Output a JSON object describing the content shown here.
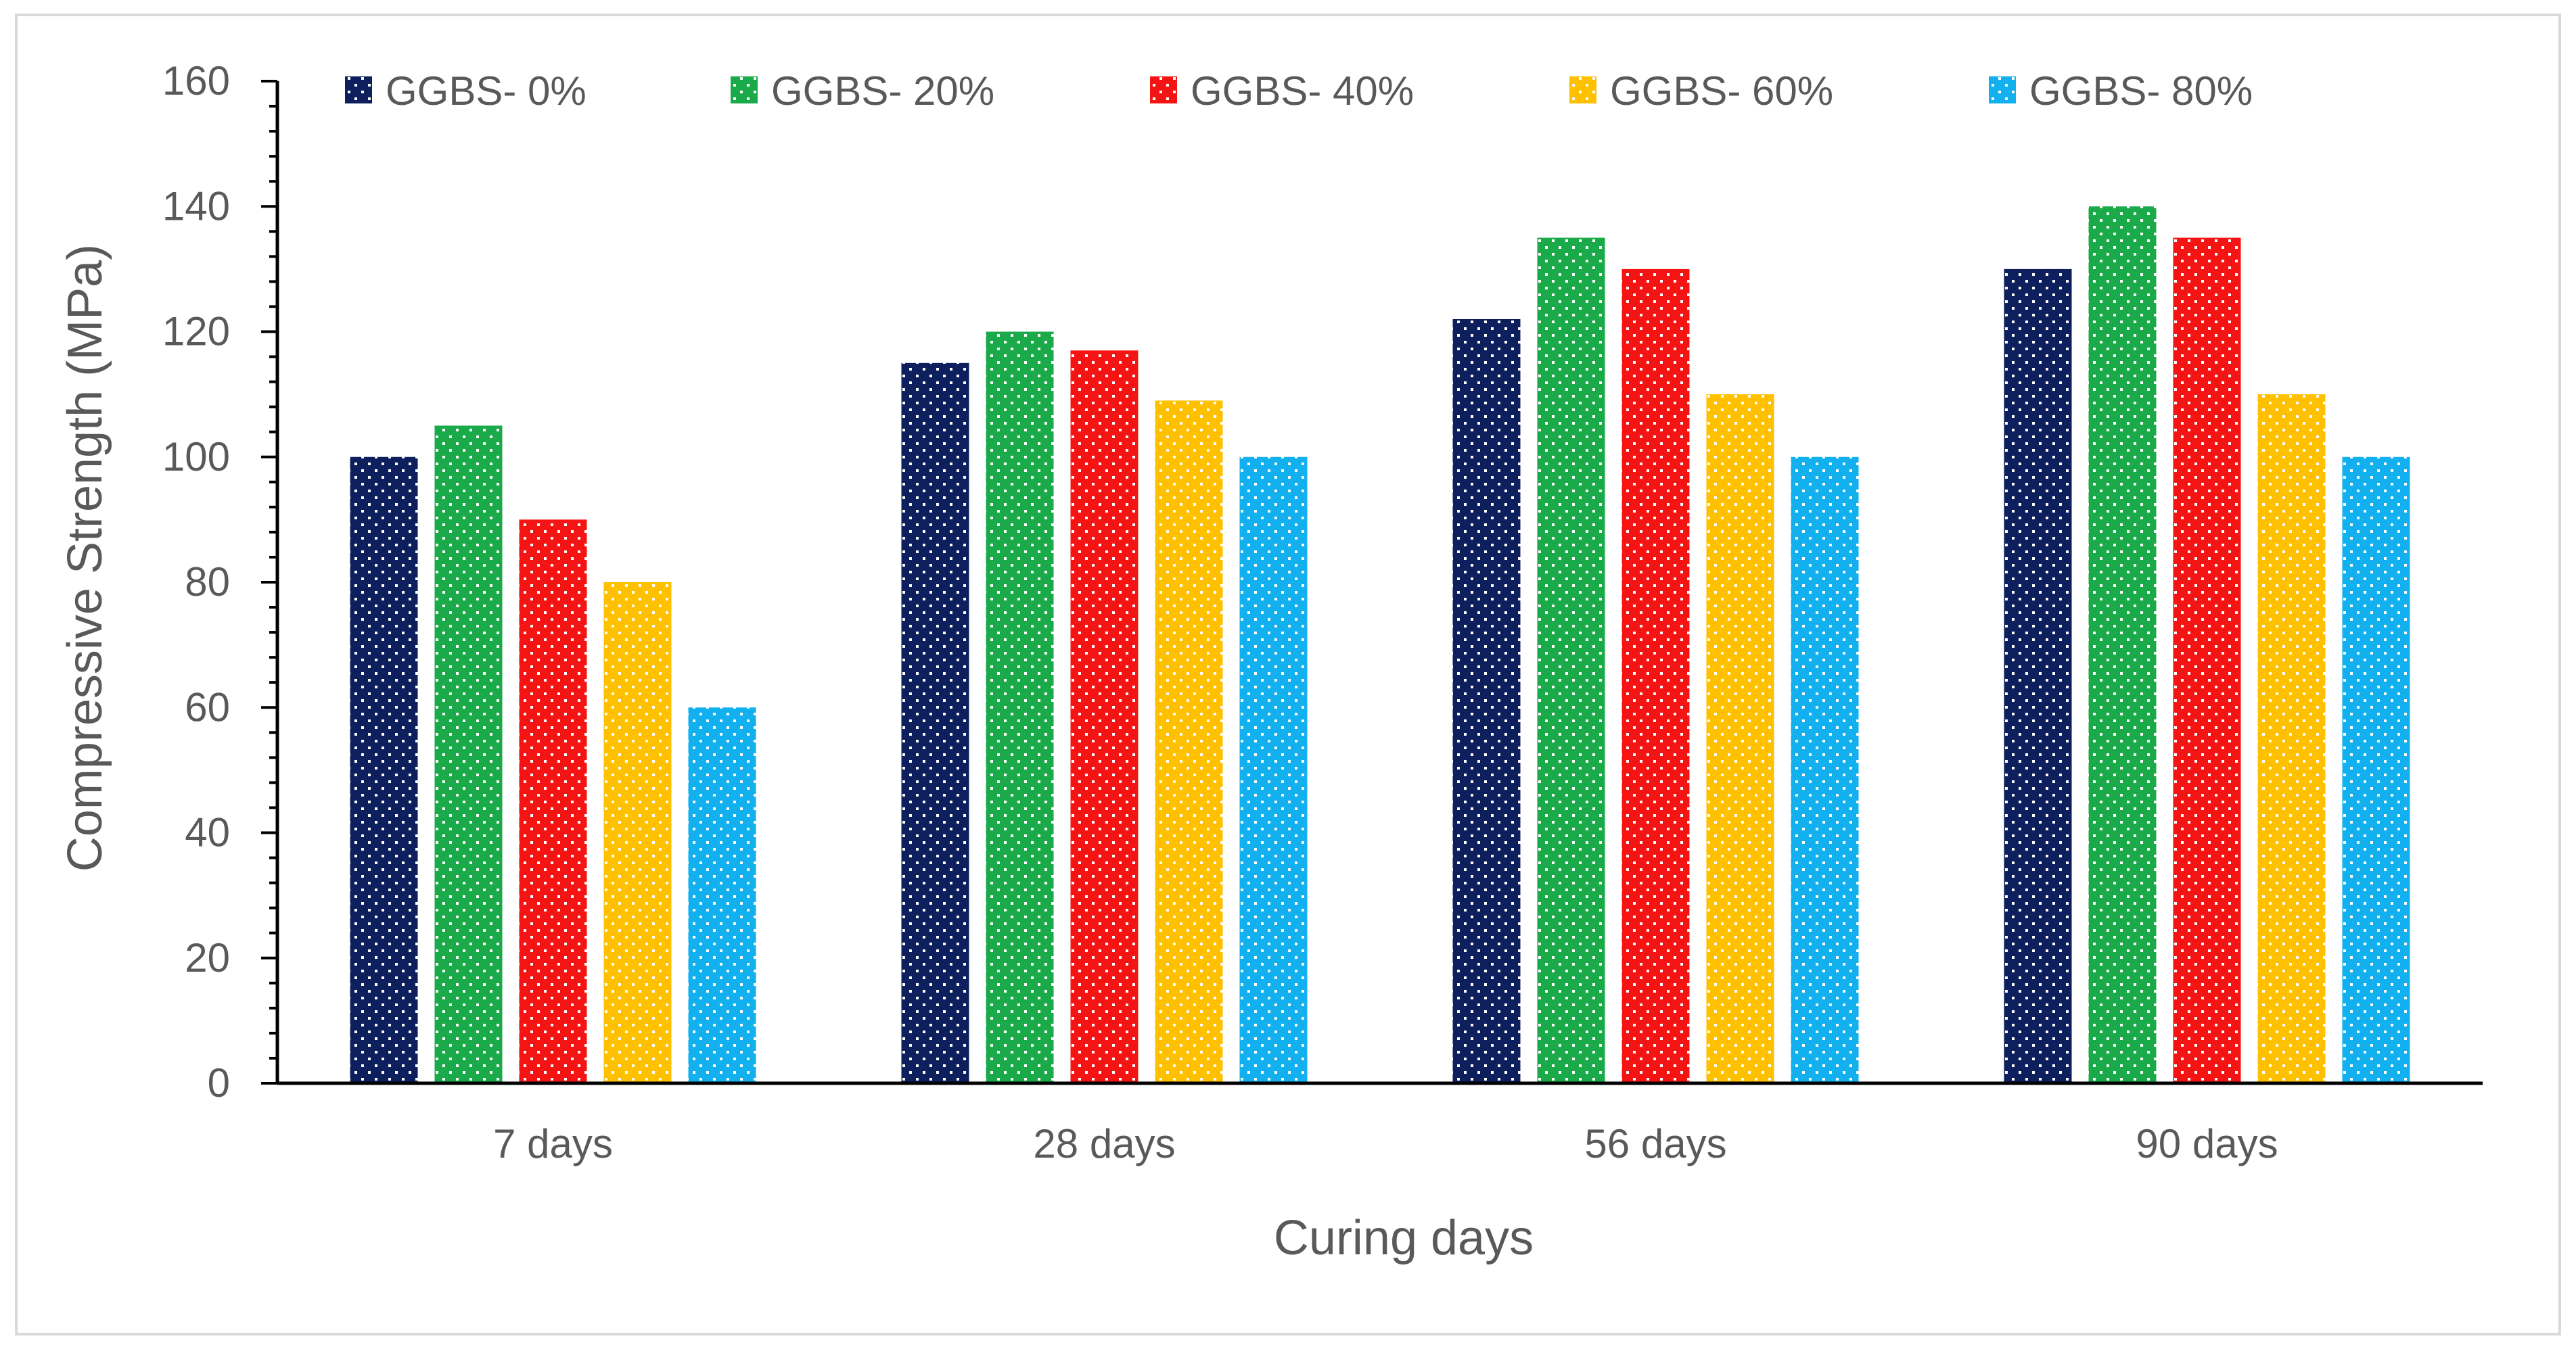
{
  "chart_data": {
    "type": "bar",
    "categories": [
      "7 days",
      "28 days",
      "56 days",
      "90 days"
    ],
    "series": [
      {
        "name": "GGBS- 0%",
        "color": "#0d1f5c",
        "values": [
          100,
          115,
          122,
          130
        ]
      },
      {
        "name": "GGBS- 20%",
        "color": "#1aaa4a",
        "values": [
          105,
          120,
          135,
          140
        ]
      },
      {
        "name": "GGBS- 40%",
        "color": "#f51414",
        "values": [
          90,
          117,
          130,
          135
        ]
      },
      {
        "name": "GGBS- 60%",
        "color": "#ffc000",
        "values": [
          80,
          109,
          110,
          110
        ]
      },
      {
        "name": "GGBS- 80%",
        "color": "#12b0ee",
        "values": [
          60,
          100,
          100,
          100
        ]
      }
    ],
    "title": "",
    "xlabel": "Curing days",
    "ylabel": "Compressive Strength (MPa)",
    "ylim": [
      0,
      160
    ],
    "yticks": [
      0,
      20,
      40,
      60,
      80,
      100,
      120,
      140,
      160
    ],
    "ytick_labels": [
      "0",
      "20",
      "40",
      "60",
      "80",
      "100",
      "120",
      "140",
      "160"
    ],
    "minor_tick_step": 4,
    "grid": false,
    "legend": "top",
    "pattern": "white dots"
  }
}
